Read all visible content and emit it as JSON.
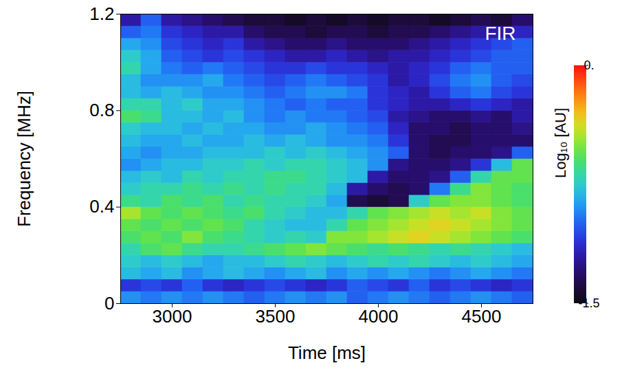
{
  "chart_data": {
    "type": "heatmap",
    "title": "FIR",
    "x_label": "Time [ms]",
    "y_label": "Frequency [MHz]",
    "x": [
      2800,
      2900,
      3000,
      3100,
      3200,
      3300,
      3400,
      3500,
      3600,
      3700,
      3800,
      3900,
      4000,
      4100,
      4200,
      4300,
      4400,
      4500,
      4600,
      4700
    ],
    "y": [
      0.025,
      0.075,
      0.125,
      0.175,
      0.225,
      0.275,
      0.325,
      0.375,
      0.425,
      0.475,
      0.525,
      0.575,
      0.625,
      0.675,
      0.725,
      0.775,
      0.825,
      0.875,
      0.925,
      0.975,
      1.025,
      1.075,
      1.125,
      1.175
    ],
    "values": [
      [
        -0.9,
        -0.95,
        -0.9,
        -0.95,
        -0.9,
        -0.95,
        -1.0,
        -0.95,
        -0.9,
        -0.95,
        -0.9,
        -1.0,
        -0.95,
        -0.9,
        -0.95,
        -1.0,
        -0.95,
        -0.9,
        -0.95,
        -1.0
      ],
      [
        -1.1,
        -1.05,
        -1.1,
        -1.0,
        -1.1,
        -1.15,
        -1.1,
        -1.05,
        -1.1,
        -1.15,
        -1.1,
        -1.0,
        -1.05,
        -1.1,
        -1.0,
        -1.1,
        -1.05,
        -1.1,
        -1.15,
        -1.1
      ],
      [
        -0.8,
        -0.85,
        -0.8,
        -0.9,
        -0.85,
        -0.8,
        -0.85,
        -0.9,
        -0.85,
        -0.8,
        -0.9,
        -0.85,
        -0.9,
        -0.85,
        -0.9,
        -0.95,
        -0.9,
        -0.85,
        -0.9,
        -0.95
      ],
      [
        -0.75,
        -0.8,
        -0.75,
        -0.8,
        -0.85,
        -0.8,
        -0.8,
        -0.75,
        -0.7,
        -0.75,
        -0.8,
        -0.75,
        -0.7,
        -0.75,
        -0.7,
        -0.75,
        -0.8,
        -0.75,
        -0.8,
        -0.85
      ],
      [
        -0.7,
        -0.6,
        -0.55,
        -0.65,
        -0.7,
        -0.7,
        -0.65,
        -0.6,
        -0.55,
        -0.5,
        -0.55,
        -0.6,
        -0.65,
        -0.6,
        -0.65,
        -0.7,
        -0.65,
        -0.7,
        -0.75,
        -0.8
      ],
      [
        -0.6,
        -0.55,
        -0.6,
        -0.5,
        -0.6,
        -0.65,
        -0.7,
        -0.75,
        -0.7,
        -0.75,
        -0.5,
        -0.5,
        -0.45,
        -0.4,
        -0.35,
        -0.4,
        -0.45,
        -0.5,
        -0.55,
        -0.6
      ],
      [
        -0.55,
        -0.6,
        -0.55,
        -0.6,
        -0.55,
        -0.6,
        -0.7,
        -0.75,
        -0.8,
        -0.8,
        -0.7,
        -0.55,
        -0.5,
        -0.45,
        -0.4,
        -0.35,
        -0.4,
        -0.45,
        -0.5,
        -0.55
      ],
      [
        -0.45,
        -0.55,
        -0.6,
        -0.55,
        -0.6,
        -0.65,
        -0.6,
        -0.7,
        -0.75,
        -0.8,
        -0.8,
        -0.7,
        -0.55,
        -0.5,
        -0.45,
        -0.4,
        -0.45,
        -0.4,
        -0.5,
        -0.55
      ],
      [
        -0.65,
        -0.7,
        -0.6,
        -0.65,
        -0.6,
        -0.7,
        -0.65,
        -0.7,
        -0.7,
        -0.75,
        -0.85,
        -1.35,
        -1.4,
        -1.35,
        -0.75,
        -0.55,
        -0.5,
        -0.5,
        -0.55,
        -0.6
      ],
      [
        -0.75,
        -0.7,
        -0.7,
        -0.65,
        -0.7,
        -0.65,
        -0.7,
        -0.65,
        -0.7,
        -0.7,
        -0.8,
        -1.2,
        -1.3,
        -1.35,
        -1.3,
        -0.95,
        -0.65,
        -0.5,
        -0.55,
        -0.6
      ],
      [
        -0.8,
        -0.75,
        -0.8,
        -0.7,
        -0.75,
        -0.7,
        -0.7,
        -0.65,
        -0.65,
        -0.7,
        -0.75,
        -0.8,
        -1.2,
        -1.3,
        -1.3,
        -1.25,
        -1.0,
        -0.7,
        -0.55,
        -0.55
      ],
      [
        -0.9,
        -0.85,
        -0.8,
        -0.8,
        -0.75,
        -0.75,
        -0.7,
        -0.75,
        -0.7,
        -0.7,
        -0.75,
        -0.8,
        -0.9,
        -1.25,
        -1.3,
        -1.3,
        -1.25,
        -1.1,
        -0.8,
        -0.55
      ],
      [
        -0.85,
        -0.9,
        -0.85,
        -0.85,
        -0.8,
        -0.8,
        -0.8,
        -0.75,
        -0.8,
        -0.75,
        -0.8,
        -0.85,
        -0.9,
        -1.0,
        -1.3,
        -1.35,
        -1.3,
        -1.3,
        -1.25,
        -1.0
      ],
      [
        -0.8,
        -0.85,
        -0.85,
        -0.8,
        -0.85,
        -0.85,
        -0.8,
        -0.85,
        -0.8,
        -0.85,
        -0.9,
        -0.9,
        -0.95,
        -1.1,
        -1.3,
        -1.35,
        -1.35,
        -1.3,
        -1.3,
        -1.3
      ],
      [
        -0.75,
        -0.8,
        -0.8,
        -0.85,
        -0.8,
        -0.85,
        -0.85,
        -0.9,
        -0.9,
        -0.85,
        -0.9,
        -0.95,
        -1.0,
        -1.15,
        -1.3,
        -1.3,
        -1.35,
        -1.3,
        -1.3,
        -1.25
      ],
      [
        -0.6,
        -0.65,
        -0.8,
        -0.8,
        -0.85,
        -0.8,
        -0.9,
        -0.95,
        -0.9,
        -0.95,
        -0.95,
        -1.0,
        -1.05,
        -1.2,
        -1.25,
        -1.3,
        -1.3,
        -1.25,
        -1.3,
        -1.2
      ],
      [
        -0.7,
        -0.7,
        -0.8,
        -0.75,
        -0.85,
        -0.85,
        -0.9,
        -0.95,
        -1.0,
        -0.95,
        -1.0,
        -1.0,
        -1.1,
        -1.15,
        -1.2,
        -1.2,
        -1.15,
        -1.1,
        -1.15,
        -1.2
      ],
      [
        -0.8,
        -0.85,
        -0.8,
        -0.85,
        -0.9,
        -0.9,
        -0.95,
        -1.0,
        -0.95,
        -0.9,
        -0.9,
        -0.95,
        -1.1,
        -1.15,
        -1.2,
        -1.1,
        -1.0,
        -0.95,
        -1.05,
        -1.1
      ],
      [
        -0.8,
        -0.9,
        -0.9,
        -0.9,
        -0.85,
        -0.95,
        -1.0,
        -1.05,
        -1.0,
        -0.95,
        -1.0,
        -1.05,
        -1.1,
        -1.2,
        -1.15,
        -1.05,
        -0.95,
        -0.9,
        -1.0,
        -1.05
      ],
      [
        -0.7,
        -0.85,
        -0.95,
        -1.0,
        -0.95,
        -1.0,
        -1.05,
        -1.1,
        -1.1,
        -1.05,
        -1.1,
        -1.1,
        -1.15,
        -1.2,
        -1.15,
        -1.1,
        -1.0,
        -0.95,
        -1.0,
        -1.0
      ],
      [
        -0.75,
        -0.85,
        -1.0,
        -1.05,
        -1.1,
        -1.05,
        -1.1,
        -1.15,
        -1.2,
        -1.2,
        -1.15,
        -1.2,
        -1.25,
        -1.2,
        -1.2,
        -1.15,
        -1.1,
        -1.05,
        -1.0,
        -1.0
      ],
      [
        -0.85,
        -0.9,
        -1.05,
        -1.1,
        -1.15,
        -1.1,
        -1.2,
        -1.25,
        -1.3,
        -1.3,
        -1.25,
        -1.3,
        -1.3,
        -1.3,
        -1.25,
        -1.2,
        -1.15,
        -1.1,
        -1.05,
        -1.0
      ],
      [
        -1.0,
        -0.95,
        -1.1,
        -1.15,
        -1.2,
        -1.2,
        -1.3,
        -1.35,
        -1.35,
        -1.4,
        -1.35,
        -1.35,
        -1.4,
        -1.35,
        -1.35,
        -1.3,
        -1.25,
        -1.2,
        -1.2,
        -1.15
      ],
      [
        -1.2,
        -1.0,
        -1.2,
        -1.25,
        -1.3,
        -1.35,
        -1.4,
        -1.4,
        -1.45,
        -1.4,
        -1.45,
        -1.4,
        -1.45,
        -1.4,
        -1.4,
        -1.45,
        -1.4,
        -1.35,
        -1.4,
        -1.3
      ]
    ],
    "xlim": [
      2750,
      4750
    ],
    "ylim": [
      0,
      1.2
    ],
    "xticks": [
      3000,
      3500,
      4000,
      4500
    ],
    "yticks": [
      0,
      0.4,
      0.8,
      1.2
    ],
    "color_label": "Log₁₀ [AU]",
    "color_range": [
      -1.5,
      0
    ],
    "color_ticks": [
      {
        "value": 0,
        "label": "0."
      },
      -1.5
    ]
  }
}
